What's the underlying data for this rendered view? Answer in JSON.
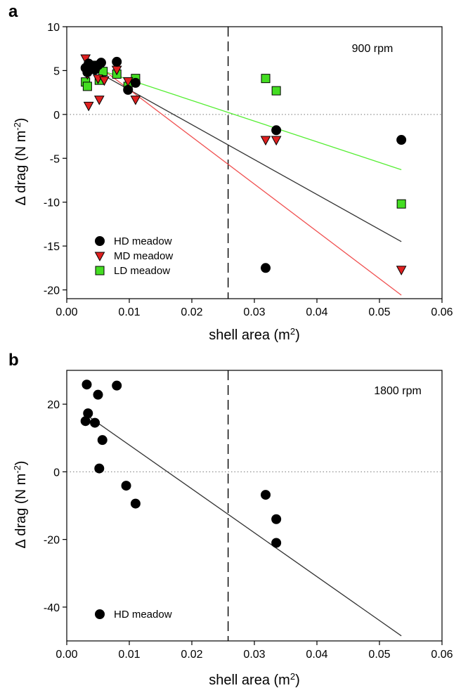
{
  "chart_data": [
    {
      "panel": "a",
      "type": "scatter",
      "annotation": "900 rpm",
      "xlabel": "shell area (m",
      "xlabel_sup": "2",
      "xlabel_end": ")",
      "ylabel": "Δ drag (N m",
      "ylabel_sup": "-2",
      "ylabel_end": ")",
      "xlim": [
        0.0,
        0.06
      ],
      "ylim": [
        -21,
        10
      ],
      "xticks": [
        0.0,
        0.01,
        0.02,
        0.03,
        0.04,
        0.05,
        0.06
      ],
      "xtick_labels": [
        "0.00",
        "0.01",
        "0.02",
        "0.03",
        "0.04",
        "0.05",
        "0.06"
      ],
      "yticks": [
        -20,
        -15,
        -10,
        -5,
        0,
        5,
        10
      ],
      "ytick_labels": [
        "-20",
        "-15",
        "-10",
        "-5",
        "0",
        "5",
        "10"
      ],
      "vline_x": 0.0258,
      "zero_line": true,
      "legend_position": "bottom-left",
      "series": [
        {
          "name": "HD meadow",
          "marker": "circle",
          "color": "#000000",
          "line_color": "#333333",
          "points": [
            [
              0.003,
              5.3
            ],
            [
              0.0033,
              4.8
            ],
            [
              0.0035,
              5.8
            ],
            [
              0.004,
              5.5
            ],
            [
              0.0045,
              5.1
            ],
            [
              0.005,
              5.6
            ],
            [
              0.0055,
              5.9
            ],
            [
              0.008,
              6.0
            ],
            [
              0.0098,
              2.8
            ],
            [
              0.011,
              3.6
            ],
            [
              0.0318,
              -17.5
            ],
            [
              0.0335,
              -1.8
            ],
            [
              0.0535,
              -2.9
            ]
          ],
          "fit": [
            [
              0.003,
              5.6
            ],
            [
              0.0535,
              -14.5
            ]
          ]
        },
        {
          "name": "MD meadow",
          "marker": "triangle-down",
          "color": "#e02020",
          "line_color": "#f05050",
          "points": [
            [
              0.003,
              6.4
            ],
            [
              0.0033,
              4.6
            ],
            [
              0.0035,
              1.0
            ],
            [
              0.0045,
              5.6
            ],
            [
              0.005,
              4.1
            ],
            [
              0.0052,
              1.7
            ],
            [
              0.006,
              3.9
            ],
            [
              0.008,
              5.1
            ],
            [
              0.0098,
              3.8
            ],
            [
              0.011,
              1.7
            ],
            [
              0.0318,
              -2.9
            ],
            [
              0.0335,
              -2.9
            ],
            [
              0.0535,
              -17.7
            ]
          ],
          "fit": [
            [
              0.003,
              6.6
            ],
            [
              0.0535,
              -20.6
            ]
          ]
        },
        {
          "name": "LD meadow",
          "marker": "square",
          "color": "#44dd22",
          "line_color": "#55ee33",
          "points": [
            [
              0.003,
              3.7
            ],
            [
              0.0033,
              3.2
            ],
            [
              0.004,
              5.2
            ],
            [
              0.0045,
              5.3
            ],
            [
              0.0048,
              5.6
            ],
            [
              0.0052,
              3.9
            ],
            [
              0.0058,
              4.9
            ],
            [
              0.008,
              4.6
            ],
            [
              0.0098,
              3.2
            ],
            [
              0.011,
              4.1
            ],
            [
              0.0318,
              4.1
            ],
            [
              0.0335,
              2.7
            ],
            [
              0.0535,
              -10.2
            ]
          ],
          "fit": [
            [
              0.003,
              5.6
            ],
            [
              0.0535,
              -6.3
            ]
          ]
        }
      ]
    },
    {
      "panel": "b",
      "type": "scatter",
      "annotation": "1800 rpm",
      "xlabel": "shell area (m",
      "xlabel_sup": "2",
      "xlabel_end": ")",
      "ylabel": "Δ drag (N m",
      "ylabel_sup": "-2",
      "ylabel_end": ")",
      "xlim": [
        0.0,
        0.06
      ],
      "ylim": [
        -50,
        30
      ],
      "xticks": [
        0.0,
        0.01,
        0.02,
        0.03,
        0.04,
        0.05,
        0.06
      ],
      "xtick_labels": [
        "0.00",
        "0.01",
        "0.02",
        "0.03",
        "0.04",
        "0.05",
        "0.06"
      ],
      "yticks": [
        -40,
        -20,
        0,
        20
      ],
      "ytick_labels": [
        "-40",
        "-20",
        "0",
        "20"
      ],
      "vline_x": 0.0258,
      "zero_line": true,
      "legend_position": "bottom-left",
      "series": [
        {
          "name": "HD meadow",
          "marker": "circle",
          "color": "#000000",
          "line_color": "#333333",
          "points": [
            [
              0.003,
              15.0
            ],
            [
              0.0032,
              25.8
            ],
            [
              0.0034,
              17.3
            ],
            [
              0.0045,
              14.5
            ],
            [
              0.005,
              22.8
            ],
            [
              0.0052,
              1.0
            ],
            [
              0.0057,
              9.4
            ],
            [
              0.008,
              25.5
            ],
            [
              0.0095,
              -4.1
            ],
            [
              0.011,
              -9.4
            ],
            [
              0.0318,
              -6.8
            ],
            [
              0.0335,
              -14.0
            ],
            [
              0.0335,
              -21.0
            ]
          ],
          "fit": [
            [
              0.003,
              17.0
            ],
            [
              0.0535,
              -48.5
            ]
          ]
        }
      ]
    }
  ]
}
